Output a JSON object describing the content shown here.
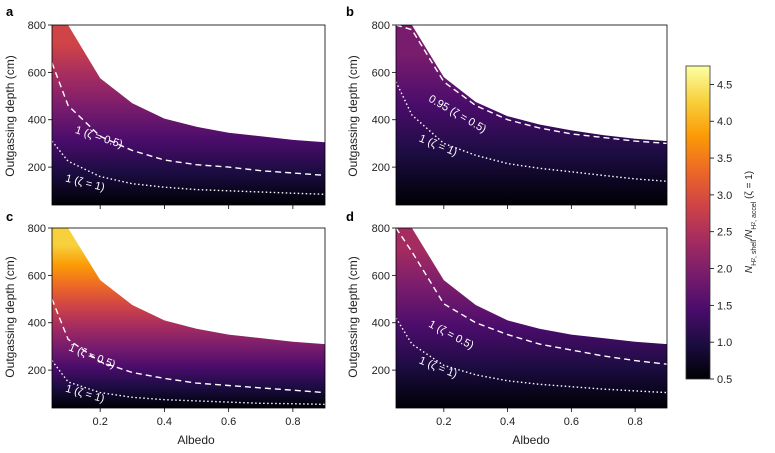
{
  "chart_data": [
    {
      "type": "heatmap",
      "panel_label": "a",
      "xlabel": "",
      "ylabel": "Outgassing depth (cm)",
      "xlim": [
        0.05,
        0.9
      ],
      "ylim": [
        40,
        800
      ],
      "x_ticks": [
        0.2,
        0.4,
        0.6,
        0.8
      ],
      "x_tick_labels": [
        "",
        "",
        "",
        ""
      ],
      "y_ticks": [
        200,
        400,
        600,
        800
      ],
      "y_tick_labels": [
        "200",
        "400",
        "600",
        "800"
      ],
      "upper_boundary": {
        "albedo": [
          0.05,
          0.1,
          0.2,
          0.3,
          0.4,
          0.5,
          0.6,
          0.7,
          0.8,
          0.9
        ],
        "depth": [
          800,
          800,
          575,
          470,
          405,
          370,
          345,
          330,
          315,
          305
        ]
      },
      "lines": [
        {
          "label": "1 (ζ = 0.5)",
          "style": "dashed",
          "albedo": [
            0.05,
            0.1,
            0.2,
            0.3,
            0.4,
            0.5,
            0.6,
            0.7,
            0.8,
            0.9
          ],
          "depth": [
            640,
            460,
            330,
            270,
            230,
            210,
            200,
            185,
            175,
            165
          ]
        },
        {
          "label": "1 (ζ = 1)",
          "style": "dotted",
          "albedo": [
            0.05,
            0.1,
            0.2,
            0.3,
            0.4,
            0.5,
            0.6,
            0.7,
            0.8,
            0.9
          ],
          "depth": [
            310,
            225,
            160,
            130,
            115,
            105,
            100,
            95,
            90,
            85
          ]
        }
      ]
    },
    {
      "type": "heatmap",
      "panel_label": "b",
      "xlabel": "",
      "ylabel": "Outgassing depth (cm)",
      "xlim": [
        0.05,
        0.9
      ],
      "ylim": [
        40,
        800
      ],
      "x_ticks": [
        0.2,
        0.4,
        0.6,
        0.8
      ],
      "x_tick_labels": [
        "",
        "",
        "",
        ""
      ],
      "y_ticks": [
        200,
        400,
        600,
        800
      ],
      "y_tick_labels": [
        "200",
        "400",
        "600",
        "800"
      ],
      "upper_boundary": {
        "albedo": [
          0.05,
          0.1,
          0.2,
          0.3,
          0.4,
          0.5,
          0.6,
          0.7,
          0.8,
          0.9
        ],
        "depth": [
          800,
          800,
          580,
          475,
          415,
          380,
          355,
          335,
          320,
          310
        ]
      },
      "lines": [
        {
          "label": "0.95 (ζ = 0.5)",
          "style": "dashed",
          "albedo": [
            0.05,
            0.1,
            0.2,
            0.3,
            0.4,
            0.5,
            0.6,
            0.7,
            0.8,
            0.9
          ],
          "depth": [
            800,
            780,
            560,
            460,
            400,
            365,
            340,
            325,
            310,
            300
          ]
        },
        {
          "label": "1 (ζ = 1)",
          "style": "dotted",
          "albedo": [
            0.05,
            0.1,
            0.2,
            0.3,
            0.4,
            0.5,
            0.6,
            0.7,
            0.8,
            0.9
          ],
          "depth": [
            560,
            420,
            300,
            250,
            215,
            195,
            180,
            165,
            150,
            140
          ]
        }
      ]
    },
    {
      "type": "heatmap",
      "panel_label": "c",
      "xlabel": "Albedo",
      "ylabel": "Outgassing depth (cm)",
      "xlim": [
        0.05,
        0.9
      ],
      "ylim": [
        40,
        800
      ],
      "x_ticks": [
        0.2,
        0.4,
        0.6,
        0.8
      ],
      "x_tick_labels": [
        "0.2",
        "0.4",
        "0.6",
        "0.8"
      ],
      "y_ticks": [
        200,
        400,
        600,
        800
      ],
      "y_tick_labels": [
        "200",
        "400",
        "600",
        "800"
      ],
      "upper_boundary": {
        "albedo": [
          0.05,
          0.1,
          0.2,
          0.3,
          0.4,
          0.5,
          0.6,
          0.7,
          0.8,
          0.9
        ],
        "depth": [
          800,
          800,
          580,
          475,
          410,
          375,
          350,
          335,
          320,
          310
        ]
      },
      "lines": [
        {
          "label": "1 (ζ = 0.5)",
          "style": "dashed",
          "albedo": [
            0.05,
            0.1,
            0.2,
            0.3,
            0.4,
            0.5,
            0.6,
            0.7,
            0.8,
            0.9
          ],
          "depth": [
            500,
            330,
            235,
            190,
            165,
            145,
            135,
            125,
            115,
            105
          ]
        },
        {
          "label": "1 (ζ = 1)",
          "style": "dotted",
          "albedo": [
            0.05,
            0.1,
            0.2,
            0.3,
            0.4,
            0.5,
            0.6,
            0.7,
            0.8,
            0.9
          ],
          "depth": [
            240,
            150,
            105,
            85,
            75,
            70,
            65,
            60,
            58,
            55
          ]
        }
      ]
    },
    {
      "type": "heatmap",
      "panel_label": "d",
      "xlabel": "Albedo",
      "ylabel": "Outgassing depth (cm)",
      "xlim": [
        0.05,
        0.9
      ],
      "ylim": [
        40,
        800
      ],
      "x_ticks": [
        0.2,
        0.4,
        0.6,
        0.8
      ],
      "x_tick_labels": [
        "0.2",
        "0.4",
        "0.6",
        "0.8"
      ],
      "y_ticks": [
        200,
        400,
        600,
        800
      ],
      "y_tick_labels": [
        "200",
        "400",
        "600",
        "800"
      ],
      "upper_boundary": {
        "albedo": [
          0.05,
          0.1,
          0.2,
          0.3,
          0.4,
          0.5,
          0.6,
          0.7,
          0.8,
          0.9
        ],
        "depth": [
          800,
          800,
          580,
          475,
          410,
          375,
          350,
          335,
          320,
          310
        ]
      },
      "lines": [
        {
          "label": "1 (ζ = 0.5)",
          "style": "dashed",
          "albedo": [
            0.05,
            0.1,
            0.2,
            0.3,
            0.4,
            0.5,
            0.6,
            0.7,
            0.8,
            0.9
          ],
          "depth": [
            800,
            700,
            480,
            400,
            350,
            310,
            285,
            260,
            240,
            225
          ]
        },
        {
          "label": "1 (ζ = 1)",
          "style": "dotted",
          "albedo": [
            0.05,
            0.1,
            0.2,
            0.3,
            0.4,
            0.5,
            0.6,
            0.7,
            0.8,
            0.9
          ],
          "depth": [
            420,
            310,
            220,
            180,
            155,
            140,
            130,
            120,
            112,
            105
          ]
        }
      ]
    }
  ],
  "colorbar": {
    "range": [
      0.5,
      4.75
    ],
    "ticks": [
      0.5,
      1.0,
      1.5,
      2.0,
      2.5,
      3.0,
      3.5,
      4.0,
      4.5
    ],
    "tick_labels": [
      "0.5",
      "1.0",
      "1.5",
      "2.0",
      "2.5",
      "3.0",
      "3.5",
      "4.0",
      "4.5"
    ],
    "colormap": "inferno",
    "label_main": "N",
    "label_sub1": "H",
    "label_sub1b": "2",
    "label_sub1c": ", shell",
    "label_slash": "/N",
    "label_sub2": "H",
    "label_sub2b": "2",
    "label_sub2c": ", accel",
    "label_tail": " (ζ = 1)"
  },
  "colors": {
    "cmap_stops": [
      "#000004",
      "#1b0c41",
      "#4a0c6b",
      "#781c6d",
      "#a52c60",
      "#cf4446",
      "#ed6925",
      "#fb9b06",
      "#f7d13d",
      "#fcffa4"
    ]
  }
}
